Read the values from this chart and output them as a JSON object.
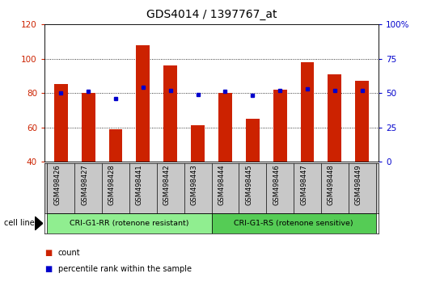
{
  "title": "GDS4014 / 1397767_at",
  "samples": [
    "GSM498426",
    "GSM498427",
    "GSM498428",
    "GSM498441",
    "GSM498442",
    "GSM498443",
    "GSM498444",
    "GSM498445",
    "GSM498446",
    "GSM498447",
    "GSM498448",
    "GSM498449"
  ],
  "count_values": [
    85,
    80,
    59,
    108,
    96,
    61,
    80,
    65,
    82,
    98,
    91,
    87
  ],
  "percentile_values": [
    50,
    51,
    46,
    54,
    52,
    49,
    51,
    48,
    52,
    53,
    52,
    52
  ],
  "group1_label": "CRI-G1-RR (rotenone resistant)",
  "group2_label": "CRI-G1-RS (rotenone sensitive)",
  "group1_color": "#90EE90",
  "group2_color": "#55CC55",
  "group1_indices": [
    0,
    1,
    2,
    3,
    4,
    5
  ],
  "group2_indices": [
    6,
    7,
    8,
    9,
    10,
    11
  ],
  "bar_color": "#CC2200",
  "dot_color": "#0000CC",
  "left_ylim": [
    40,
    120
  ],
  "left_yticks": [
    40,
    60,
    80,
    100,
    120
  ],
  "right_ylim": [
    0,
    100
  ],
  "right_yticks": [
    0,
    25,
    50,
    75,
    100
  ],
  "right_yticklabels": [
    "0",
    "25",
    "50",
    "75",
    "100%"
  ],
  "grid_values": [
    60,
    80,
    100
  ],
  "bar_width": 0.5,
  "cell_line_label": "cell line",
  "legend_count_label": "count",
  "legend_percentile_label": "percentile rank within the sample",
  "title_fontsize": 10,
  "axis_label_color_left": "#CC2200",
  "axis_label_color_right": "#0000CC",
  "tick_area_bg": "#C8C8C8"
}
